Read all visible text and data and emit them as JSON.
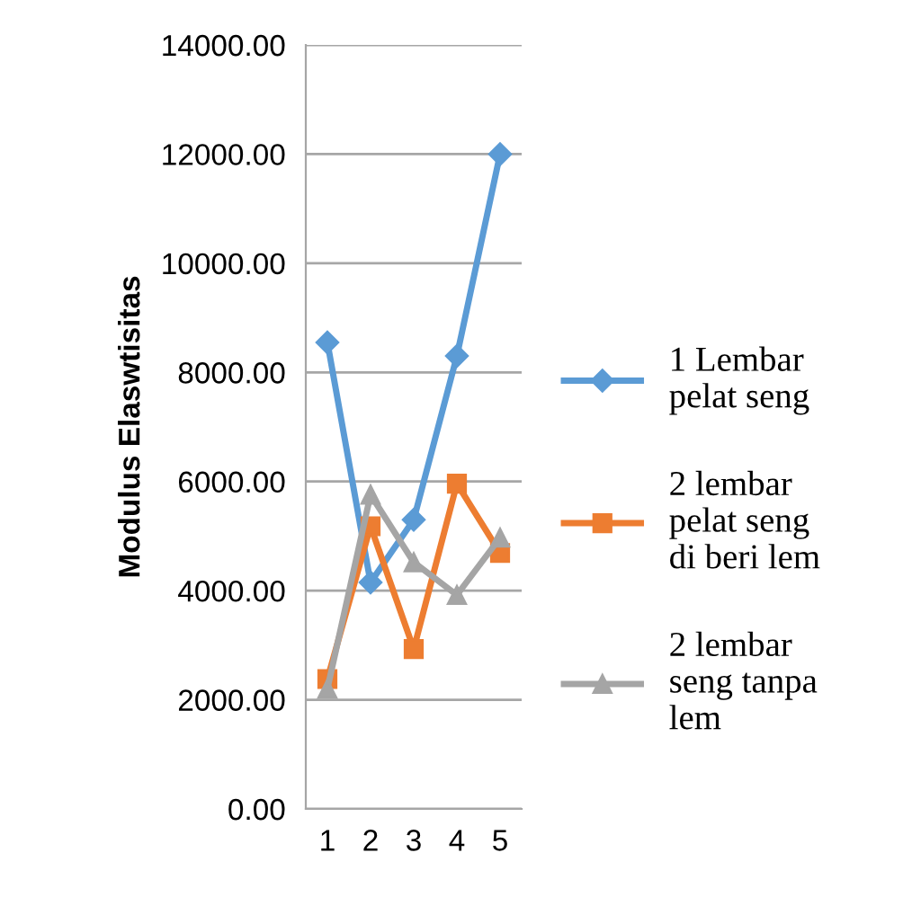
{
  "chart_data": {
    "type": "line",
    "ylabel": "Modulus Elaswtisitas",
    "categories": [
      "1",
      "2",
      "3",
      "4",
      "5"
    ],
    "series": [
      {
        "name": "1 Lembar\npelat seng",
        "color": "#5b9bd5",
        "marker": "diamond",
        "values": [
          8550,
          4150,
          5300,
          8300,
          12000
        ]
      },
      {
        "name": "2 lembar\npelat seng\ndi beri lem",
        "color": "#ed7d31",
        "marker": "square",
        "values": [
          2380,
          5180,
          2930,
          5960,
          4690
        ]
      },
      {
        "name": "2 lembar\nseng tanpa\nlem",
        "color": "#a5a5a5",
        "marker": "triangle",
        "values": [
          2200,
          5760,
          4520,
          3920,
          4970
        ]
      }
    ],
    "ylim": [
      0,
      14000
    ],
    "yticks": [
      {
        "value": 0,
        "label": "0.00"
      },
      {
        "value": 2000,
        "label": "2000.00"
      },
      {
        "value": 4000,
        "label": "4000.00"
      },
      {
        "value": 6000,
        "label": "6000.00"
      },
      {
        "value": 8000,
        "label": "8000.00"
      },
      {
        "value": 10000,
        "label": "10000.00"
      },
      {
        "value": 12000,
        "label": "12000.00"
      },
      {
        "value": 14000,
        "label": "14000.00"
      }
    ],
    "grid": "y",
    "legend": "right"
  }
}
